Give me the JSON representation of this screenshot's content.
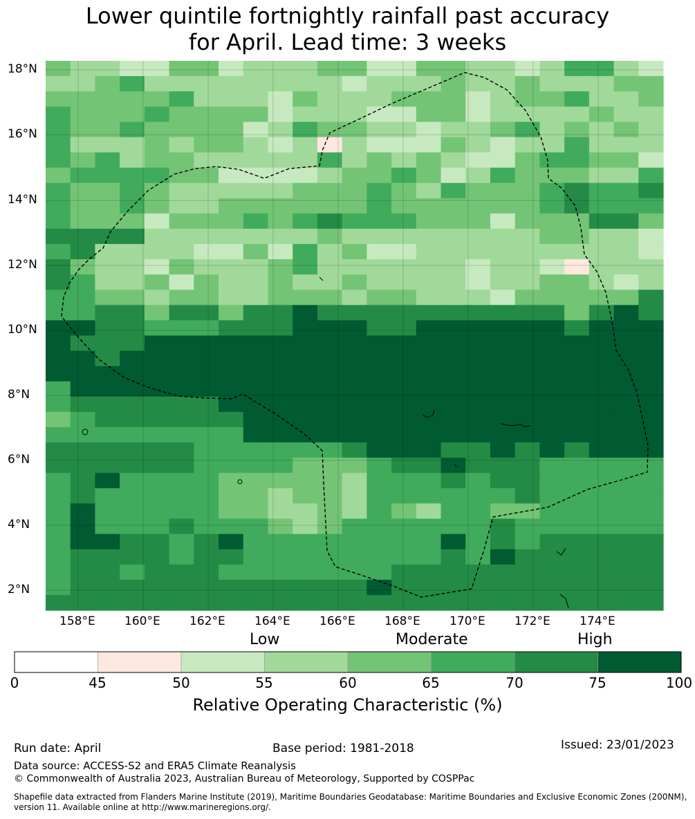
{
  "title_line1": "Lower quintile fortnightly rainfall past accuracy",
  "title_line2": "for April. Lead time: 3 weeks",
  "map": {
    "lat_labels": [
      "18°N",
      "16°N",
      "14°N",
      "12°N",
      "10°N",
      "8°N",
      "6°N",
      "4°N",
      "2°N"
    ],
    "lon_labels": [
      "158°E",
      "160°E",
      "162°E",
      "164°E",
      "166°E",
      "168°E",
      "170°E",
      "172°E",
      "174°E"
    ],
    "grid": [
      "4332244233344224433235532",
      "3345333333332333433433344",
      "4444453332433344423445334",
      "5444544442333224423333433",
      "5445444423544332334534343",
      "5333434432313222432335333",
      "5453443333353434322455442",
      "4555544222234454235444335",
      "5445433333444543544456556",
      "5445433444444544444456555",
      "5444244454565554442444664",
      "6666333333343333333344332",
      "5633332242534223333333332",
      "6433243334533333323321333",
      "6533424334334333323344323",
      "5544344334443443332444446",
      "5566466466766666666664676",
      "7766555666777667777776777",
      "7666777777777777777777777",
      "7767777777777777777777777",
      "7777777777777777777777777",
      "5777777777777777777777777",
      "5666666777777777777777777",
      "4566666677777777777777777",
      "5555555577777777777777777",
      "6666665555556777667676777",
      "6666665555444566766655555",
      "5675555444443555656655555",
      "5655555443443555555655555",
      "5755555443343543554455555",
      "5755565554345555556555555",
      "5776656755555555756566666",
      "5666656655555555657666666",
      "5665666555555566666666666",
      "5666666666666766666666666",
      "6666666666666666666666666"
    ],
    "palette": [
      "#ffffff",
      "#fee8df",
      "#c7e9c0",
      "#a1d99b",
      "#74c476",
      "#41ab5d",
      "#238b45",
      "#005a32"
    ]
  },
  "colorbar": {
    "categories": [
      "Low",
      "Moderate",
      "High"
    ],
    "ticks": [
      "0",
      "45",
      "50",
      "55",
      "60",
      "65",
      "70",
      "75",
      "100"
    ],
    "label": "Relative Operating Characteristic (%)",
    "colors": [
      "#ffffff",
      "#fee8df",
      "#c7e9c0",
      "#a1d99b",
      "#74c476",
      "#41ab5d",
      "#238b45",
      "#005a32"
    ]
  },
  "footer": {
    "run_date": "Run date: April",
    "base_period": "Base period: 1981-2018",
    "issued": "Issued: 23/01/2023",
    "data_source": "Data source: ACCESS-S2 and ERA5 Climate Reanalysis",
    "copyright": "© Commonwealth of Australia 2023, Australian Bureau of Meteorology, Supported by COSPPac",
    "shapefile": "Shapefile data extracted from Flanders Marine Institute (2019), Maritime Boundaries Geodatabase: Maritime Boundaries and Exclusive Economic Zones (200NM), version 11. Available online at http://www.marineregions.org/."
  }
}
